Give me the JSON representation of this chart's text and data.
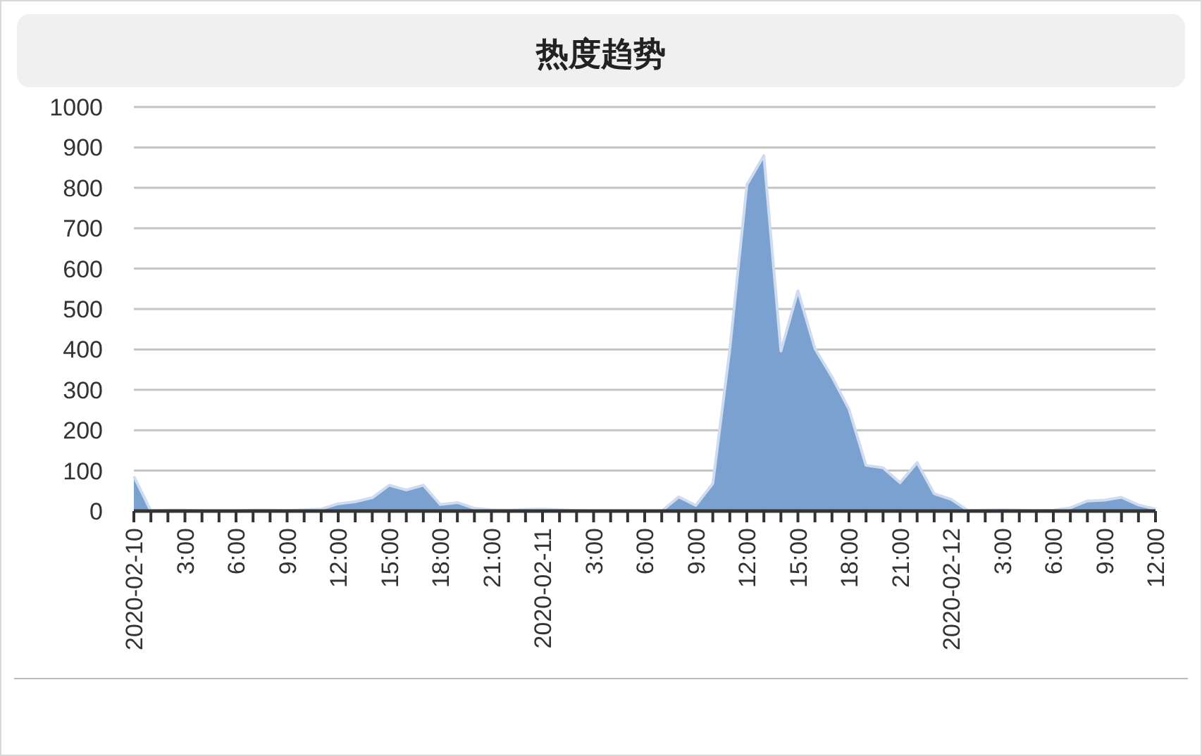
{
  "chart_data": {
    "type": "area",
    "title": "热度趋势",
    "x": [
      "2020-02-10T00:00",
      "2020-02-10T01:00",
      "2020-02-10T02:00",
      "2020-02-10T03:00",
      "2020-02-10T04:00",
      "2020-02-10T05:00",
      "2020-02-10T06:00",
      "2020-02-10T07:00",
      "2020-02-10T08:00",
      "2020-02-10T09:00",
      "2020-02-10T10:00",
      "2020-02-10T11:00",
      "2020-02-10T12:00",
      "2020-02-10T13:00",
      "2020-02-10T14:00",
      "2020-02-10T15:00",
      "2020-02-10T16:00",
      "2020-02-10T17:00",
      "2020-02-10T18:00",
      "2020-02-10T19:00",
      "2020-02-10T20:00",
      "2020-02-10T21:00",
      "2020-02-10T22:00",
      "2020-02-10T23:00",
      "2020-02-11T00:00",
      "2020-02-11T01:00",
      "2020-02-11T02:00",
      "2020-02-11T03:00",
      "2020-02-11T04:00",
      "2020-02-11T05:00",
      "2020-02-11T06:00",
      "2020-02-11T07:00",
      "2020-02-11T08:00",
      "2020-02-11T09:00",
      "2020-02-11T10:00",
      "2020-02-11T11:00",
      "2020-02-11T12:00",
      "2020-02-11T13:00",
      "2020-02-11T14:00",
      "2020-02-11T15:00",
      "2020-02-11T16:00",
      "2020-02-11T17:00",
      "2020-02-11T18:00",
      "2020-02-11T19:00",
      "2020-02-11T20:00",
      "2020-02-11T21:00",
      "2020-02-11T22:00",
      "2020-02-11T23:00",
      "2020-02-12T00:00",
      "2020-02-12T01:00",
      "2020-02-12T02:00",
      "2020-02-12T03:00",
      "2020-02-12T04:00",
      "2020-02-12T05:00",
      "2020-02-12T06:00",
      "2020-02-12T07:00",
      "2020-02-12T08:00",
      "2020-02-12T09:00",
      "2020-02-12T10:00",
      "2020-02-12T11:00",
      "2020-02-12T12:00"
    ],
    "series": [
      {
        "color": "#7aa1cf",
        "values": [
          86,
          0,
          2,
          2,
          0,
          0,
          0,
          2,
          2,
          1,
          3,
          5,
          18,
          23,
          33,
          64,
          52,
          64,
          16,
          21,
          7,
          3,
          2,
          4,
          5,
          3,
          1,
          0,
          0,
          0,
          0,
          0,
          35,
          14,
          68,
          400,
          807,
          880,
          396,
          545,
          402,
          332,
          252,
          113,
          107,
          70,
          120,
          43,
          29,
          1,
          2,
          3,
          2,
          1,
          2,
          8,
          25,
          27,
          34,
          15,
          5
        ]
      }
    ],
    "xlim": [
      "2020-02-10T00:00",
      "2020-02-12T12:00"
    ],
    "xticks": [
      {
        "value": "2020-02-10T00:00",
        "label": "2020-02-10"
      },
      {
        "value": "2020-02-10T01:00",
        "label": null
      },
      {
        "value": "2020-02-10T02:00",
        "label": null
      },
      {
        "value": "2020-02-10T03:00",
        "label": "3:00"
      },
      {
        "value": "2020-02-10T04:00",
        "label": null
      },
      {
        "value": "2020-02-10T05:00",
        "label": null
      },
      {
        "value": "2020-02-10T06:00",
        "label": "6:00"
      },
      {
        "value": "2020-02-10T07:00",
        "label": null
      },
      {
        "value": "2020-02-10T08:00",
        "label": null
      },
      {
        "value": "2020-02-10T09:00",
        "label": "9:00"
      },
      {
        "value": "2020-02-10T10:00",
        "label": null
      },
      {
        "value": "2020-02-10T11:00",
        "label": null
      },
      {
        "value": "2020-02-10T12:00",
        "label": "12:00"
      },
      {
        "value": "2020-02-10T13:00",
        "label": null
      },
      {
        "value": "2020-02-10T14:00",
        "label": null
      },
      {
        "value": "2020-02-10T15:00",
        "label": "15:00"
      },
      {
        "value": "2020-02-10T16:00",
        "label": null
      },
      {
        "value": "2020-02-10T17:00",
        "label": null
      },
      {
        "value": "2020-02-10T18:00",
        "label": "18:00"
      },
      {
        "value": "2020-02-10T19:00",
        "label": null
      },
      {
        "value": "2020-02-10T20:00",
        "label": null
      },
      {
        "value": "2020-02-10T21:00",
        "label": "21:00"
      },
      {
        "value": "2020-02-10T22:00",
        "label": null
      },
      {
        "value": "2020-02-10T23:00",
        "label": null
      },
      {
        "value": "2020-02-11T00:00",
        "label": "2020-02-11"
      },
      {
        "value": "2020-02-11T01:00",
        "label": null
      },
      {
        "value": "2020-02-11T02:00",
        "label": null
      },
      {
        "value": "2020-02-11T03:00",
        "label": "3:00"
      },
      {
        "value": "2020-02-11T04:00",
        "label": null
      },
      {
        "value": "2020-02-11T05:00",
        "label": null
      },
      {
        "value": "2020-02-11T06:00",
        "label": "6:00"
      },
      {
        "value": "2020-02-11T07:00",
        "label": null
      },
      {
        "value": "2020-02-11T08:00",
        "label": null
      },
      {
        "value": "2020-02-11T09:00",
        "label": "9:00"
      },
      {
        "value": "2020-02-11T10:00",
        "label": null
      },
      {
        "value": "2020-02-11T11:00",
        "label": null
      },
      {
        "value": "2020-02-11T12:00",
        "label": "12:00"
      },
      {
        "value": "2020-02-11T13:00",
        "label": null
      },
      {
        "value": "2020-02-11T14:00",
        "label": null
      },
      {
        "value": "2020-02-11T15:00",
        "label": "15:00"
      },
      {
        "value": "2020-02-11T16:00",
        "label": null
      },
      {
        "value": "2020-02-11T17:00",
        "label": null
      },
      {
        "value": "2020-02-11T18:00",
        "label": "18:00"
      },
      {
        "value": "2020-02-11T19:00",
        "label": null
      },
      {
        "value": "2020-02-11T20:00",
        "label": null
      },
      {
        "value": "2020-02-11T21:00",
        "label": "21:00"
      },
      {
        "value": "2020-02-11T22:00",
        "label": null
      },
      {
        "value": "2020-02-11T23:00",
        "label": null
      },
      {
        "value": "2020-02-12T00:00",
        "label": "2020-02-12"
      },
      {
        "value": "2020-02-12T01:00",
        "label": null
      },
      {
        "value": "2020-02-12T02:00",
        "label": null
      },
      {
        "value": "2020-02-12T03:00",
        "label": "3:00"
      },
      {
        "value": "2020-02-12T04:00",
        "label": null
      },
      {
        "value": "2020-02-12T05:00",
        "label": null
      },
      {
        "value": "2020-02-12T06:00",
        "label": "6:00"
      },
      {
        "value": "2020-02-12T07:00",
        "label": null
      },
      {
        "value": "2020-02-12T08:00",
        "label": null
      },
      {
        "value": "2020-02-12T09:00",
        "label": "9:00"
      },
      {
        "value": "2020-02-12T10:00",
        "label": null
      },
      {
        "value": "2020-02-12T11:00",
        "label": null
      },
      {
        "value": "2020-02-12T12:00",
        "label": "12:00"
      }
    ],
    "ylim": [
      0,
      1000
    ],
    "yticks": [
      0,
      100,
      200,
      300,
      400,
      500,
      600,
      700,
      800,
      900,
      1000
    ],
    "grid": "y"
  }
}
